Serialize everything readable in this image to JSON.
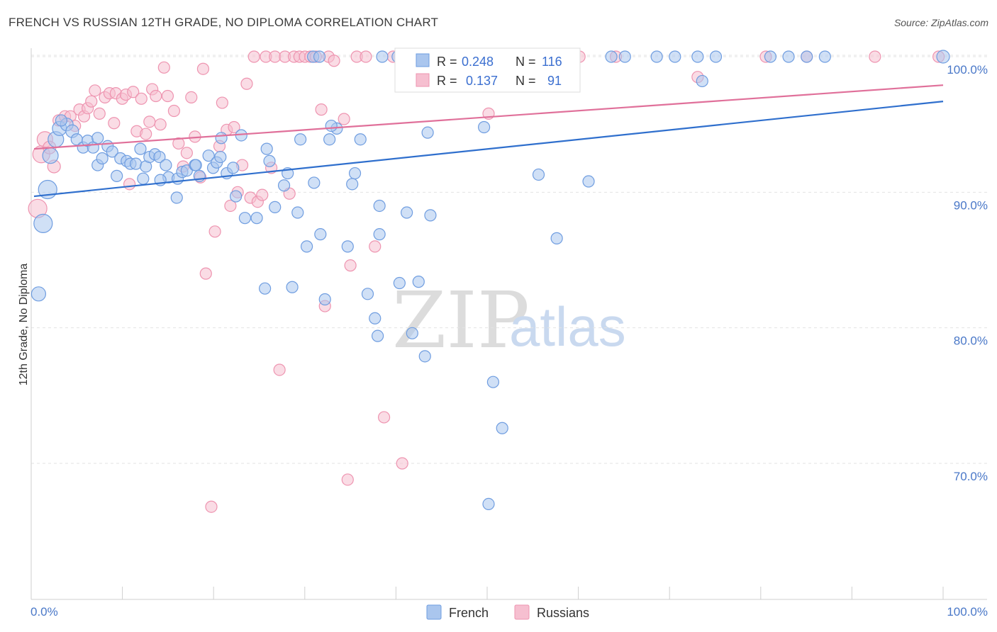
{
  "title": "FRENCH VS RUSSIAN 12TH GRADE, NO DIPLOMA CORRELATION CHART",
  "source": "Source: ZipAtlas.com",
  "watermark": {
    "zip": "ZIP",
    "atlas": "atlas"
  },
  "colors": {
    "french_fill": "#aac6ee",
    "french_stroke": "#6f9de0",
    "french_line": "#2f6fcd",
    "russian_fill": "#f6bfd0",
    "russian_stroke": "#ee94b0",
    "russian_line": "#e0709a",
    "tick_label": "#4a78c8",
    "grid": "#e3e3e3"
  },
  "legend": {
    "french": {
      "r_label": "R =",
      "r_value": "0.248",
      "n_label": "N =",
      "n_value": "116"
    },
    "russian": {
      "r_label": "R =",
      "r_value": "0.137",
      "n_label": "N =",
      "n_value": "91"
    }
  },
  "bottom_legend": {
    "french": "French",
    "russian": "Russians"
  },
  "chart_data": {
    "type": "scatter",
    "title": "FRENCH VS RUSSIAN 12TH GRADE, NO DIPLOMA CORRELATION CHART",
    "xlabel": "",
    "ylabel": "12th Grade, No Diploma",
    "xlim": [
      0,
      100
    ],
    "ylim": [
      60,
      101.5
    ],
    "x_tick_labels": [
      "0.0%",
      "100.0%"
    ],
    "y_ticks": [
      70,
      80,
      90,
      100
    ],
    "y_tick_labels": [
      "70.0%",
      "80.0%",
      "90.0%",
      "100.0%"
    ],
    "grid": true,
    "legend_position": "top-center",
    "series": [
      {
        "name": "French",
        "trend": {
          "x": [
            0,
            100
          ],
          "y": [
            89.7,
            96.7
          ]
        },
        "points": [
          [
            0.5,
            82.5,
            10
          ],
          [
            1.0,
            87.7,
            13
          ],
          [
            1.5,
            90.2,
            13
          ],
          [
            1.8,
            92.7,
            11
          ],
          [
            2.4,
            93.9,
            11
          ],
          [
            2.8,
            94.7,
            10
          ],
          [
            3.6,
            95.0,
            9
          ],
          [
            4.2,
            94.5,
            9
          ],
          [
            4.7,
            93.9,
            8
          ],
          [
            5.4,
            93.3,
            8
          ],
          [
            5.9,
            93.8,
            8
          ],
          [
            6.5,
            93.3,
            8
          ],
          [
            7.0,
            92.0,
            8
          ],
          [
            7.5,
            92.5,
            8
          ],
          [
            8.1,
            93.4,
            8
          ],
          [
            8.6,
            93.0,
            8
          ],
          [
            9.1,
            91.2,
            8
          ],
          [
            9.5,
            92.5,
            8
          ],
          [
            10.2,
            92.3,
            8
          ],
          [
            10.6,
            92.1,
            8
          ],
          [
            11.2,
            92.1,
            8
          ],
          [
            11.7,
            93.2,
            8
          ],
          [
            12.3,
            91.9,
            8
          ],
          [
            12.7,
            92.6,
            8
          ],
          [
            13.3,
            92.8,
            8
          ],
          [
            13.8,
            92.6,
            8
          ],
          [
            14.5,
            92.0,
            8
          ],
          [
            14.8,
            91.1,
            8
          ],
          [
            13.9,
            90.9,
            8
          ],
          [
            15.8,
            91.0,
            8
          ],
          [
            16.3,
            91.5,
            8
          ],
          [
            16.8,
            91.6,
            8
          ],
          [
            17.7,
            92.0,
            8
          ],
          [
            18.2,
            91.2,
            8
          ],
          [
            19.2,
            92.7,
            8
          ],
          [
            19.7,
            91.8,
            8
          ],
          [
            20.1,
            92.2,
            8
          ],
          [
            20.5,
            92.6,
            8
          ],
          [
            21.2,
            91.4,
            8
          ],
          [
            21.9,
            91.8,
            8
          ],
          [
            22.8,
            94.2,
            8
          ],
          [
            23.2,
            88.1,
            8
          ],
          [
            20.6,
            94.0,
            8
          ],
          [
            15.7,
            89.6,
            8
          ],
          [
            22.2,
            89.7,
            8
          ],
          [
            24.5,
            88.1,
            8
          ],
          [
            25.6,
            93.2,
            8
          ],
          [
            25.9,
            92.3,
            8
          ],
          [
            27.5,
            90.5,
            8
          ],
          [
            27.9,
            91.4,
            8
          ],
          [
            29.0,
            88.5,
            8
          ],
          [
            30.8,
            90.7,
            8
          ],
          [
            29.3,
            93.9,
            8
          ],
          [
            26.5,
            88.9,
            8
          ],
          [
            30.0,
            86.0,
            8
          ],
          [
            31.5,
            86.9,
            8
          ],
          [
            32.5,
            93.9,
            8
          ],
          [
            33.3,
            94.7,
            8
          ],
          [
            32.7,
            94.9,
            8
          ],
          [
            35.3,
            91.4,
            8
          ],
          [
            35.0,
            90.6,
            8
          ],
          [
            35.9,
            93.9,
            8
          ],
          [
            34.5,
            86.0,
            8
          ],
          [
            38.0,
            86.9,
            8
          ],
          [
            38.0,
            89.0,
            8
          ],
          [
            36.7,
            82.5,
            8
          ],
          [
            41.0,
            88.5,
            8
          ],
          [
            43.6,
            88.3,
            8
          ],
          [
            37.5,
            80.7,
            8
          ],
          [
            40.2,
            83.3,
            8
          ],
          [
            42.3,
            83.4,
            8
          ],
          [
            37.8,
            79.4,
            8
          ],
          [
            41.6,
            79.6,
            8
          ],
          [
            43.0,
            77.9,
            8
          ],
          [
            25.4,
            82.9,
            8
          ],
          [
            28.4,
            83.0,
            8
          ],
          [
            32.0,
            82.1,
            8
          ],
          [
            43.3,
            94.4,
            8
          ],
          [
            49.5,
            94.8,
            8
          ],
          [
            50.5,
            76.0,
            8
          ],
          [
            51.5,
            72.6,
            8
          ],
          [
            50.0,
            67.0,
            8
          ],
          [
            55.5,
            91.3,
            8
          ],
          [
            57.5,
            86.6,
            8
          ],
          [
            61.0,
            90.8,
            8
          ],
          [
            63.5,
            100,
            8
          ],
          [
            65.0,
            100,
            8
          ],
          [
            68.5,
            100,
            8
          ],
          [
            70.5,
            100,
            8
          ],
          [
            73.0,
            100,
            8
          ],
          [
            73.5,
            98.2,
            8
          ],
          [
            75.0,
            100,
            8
          ],
          [
            81.0,
            100,
            8
          ],
          [
            83.0,
            100,
            8
          ],
          [
            85.0,
            100,
            8
          ],
          [
            87.0,
            100,
            8
          ],
          [
            100.0,
            100,
            9
          ],
          [
            38.3,
            100,
            8
          ],
          [
            40.0,
            100,
            8
          ],
          [
            41.3,
            100,
            8
          ],
          [
            30.7,
            100,
            8
          ],
          [
            31.4,
            100,
            8
          ],
          [
            17.8,
            92.0,
            8
          ],
          [
            7.0,
            94.0,
            8
          ],
          [
            3.0,
            95.3,
            8
          ],
          [
            12.0,
            91.0,
            8
          ]
        ]
      },
      {
        "name": "Russians",
        "trend": {
          "x": [
            0,
            100
          ],
          "y": [
            93.2,
            97.9
          ]
        },
        "points": [
          [
            0.4,
            88.8,
            13
          ],
          [
            0.8,
            92.8,
            12
          ],
          [
            1.2,
            93.9,
            11
          ],
          [
            1.7,
            93.3,
            9
          ],
          [
            2.2,
            91.9,
            9
          ],
          [
            2.7,
            95.3,
            8
          ],
          [
            3.4,
            95.6,
            8
          ],
          [
            4.0,
            95.6,
            8
          ],
          [
            4.5,
            94.9,
            8
          ],
          [
            5.0,
            96.1,
            8
          ],
          [
            5.5,
            95.6,
            8
          ],
          [
            5.9,
            96.2,
            8
          ],
          [
            6.3,
            96.7,
            8
          ],
          [
            6.7,
            97.5,
            8
          ],
          [
            7.2,
            95.8,
            8
          ],
          [
            7.8,
            97.0,
            8
          ],
          [
            8.3,
            97.3,
            8
          ],
          [
            8.8,
            95.1,
            8
          ],
          [
            9.0,
            97.3,
            8
          ],
          [
            9.7,
            96.9,
            8
          ],
          [
            10.1,
            97.2,
            8
          ],
          [
            10.5,
            90.6,
            8
          ],
          [
            10.9,
            97.4,
            8
          ],
          [
            11.3,
            94.5,
            8
          ],
          [
            11.8,
            96.9,
            8
          ],
          [
            12.3,
            94.3,
            8
          ],
          [
            12.7,
            95.2,
            8
          ],
          [
            13.0,
            97.6,
            8
          ],
          [
            13.4,
            97.1,
            8
          ],
          [
            13.9,
            95.0,
            8
          ],
          [
            14.3,
            99.2,
            8
          ],
          [
            14.7,
            97.1,
            8
          ],
          [
            15.4,
            96.0,
            8
          ],
          [
            15.9,
            93.6,
            8
          ],
          [
            16.4,
            91.9,
            8
          ],
          [
            16.8,
            92.9,
            8
          ],
          [
            17.3,
            97.0,
            8
          ],
          [
            17.7,
            94.1,
            8
          ],
          [
            18.3,
            91.1,
            8
          ],
          [
            18.6,
            99.1,
            8
          ],
          [
            18.9,
            84.0,
            8
          ],
          [
            19.5,
            66.8,
            8
          ],
          [
            19.9,
            87.1,
            8
          ],
          [
            20.4,
            93.4,
            8
          ],
          [
            20.7,
            96.6,
            8
          ],
          [
            21.2,
            94.6,
            8
          ],
          [
            21.6,
            89.0,
            8
          ],
          [
            22.0,
            94.8,
            8
          ],
          [
            22.4,
            90.0,
            8
          ],
          [
            22.9,
            92.0,
            8
          ],
          [
            23.4,
            98.0,
            8
          ],
          [
            23.8,
            89.6,
            8
          ],
          [
            24.2,
            100,
            8
          ],
          [
            24.6,
            89.3,
            8
          ],
          [
            25.1,
            89.8,
            8
          ],
          [
            25.5,
            100,
            8
          ],
          [
            26.1,
            91.8,
            8
          ],
          [
            26.5,
            100,
            8
          ],
          [
            27.0,
            76.9,
            8
          ],
          [
            27.6,
            100,
            8
          ],
          [
            28.1,
            89.9,
            8
          ],
          [
            28.6,
            100,
            8
          ],
          [
            29.2,
            100,
            8
          ],
          [
            29.8,
            100,
            8
          ],
          [
            30.4,
            100,
            8
          ],
          [
            31.0,
            100,
            8
          ],
          [
            31.6,
            96.1,
            8
          ],
          [
            32.0,
            81.6,
            8
          ],
          [
            32.4,
            100,
            8
          ],
          [
            33.0,
            99.7,
            8
          ],
          [
            34.1,
            95.4,
            8
          ],
          [
            34.8,
            84.6,
            8
          ],
          [
            34.5,
            68.8,
            8
          ],
          [
            35.5,
            100,
            8
          ],
          [
            36.5,
            100,
            8
          ],
          [
            37.5,
            86.0,
            8
          ],
          [
            38.5,
            73.4,
            8
          ],
          [
            39.5,
            100,
            8
          ],
          [
            40.5,
            70.0,
            8
          ],
          [
            42.0,
            100,
            8
          ],
          [
            44.5,
            100,
            8
          ],
          [
            47.5,
            100,
            8
          ],
          [
            50.0,
            95.8,
            8
          ],
          [
            53.5,
            100,
            8
          ],
          [
            60.0,
            100,
            8
          ],
          [
            64.0,
            100,
            8
          ],
          [
            73.0,
            98.5,
            8
          ],
          [
            80.5,
            100,
            8
          ],
          [
            85.0,
            100,
            8
          ],
          [
            92.5,
            100,
            8
          ],
          [
            99.5,
            100,
            8
          ]
        ]
      }
    ]
  }
}
